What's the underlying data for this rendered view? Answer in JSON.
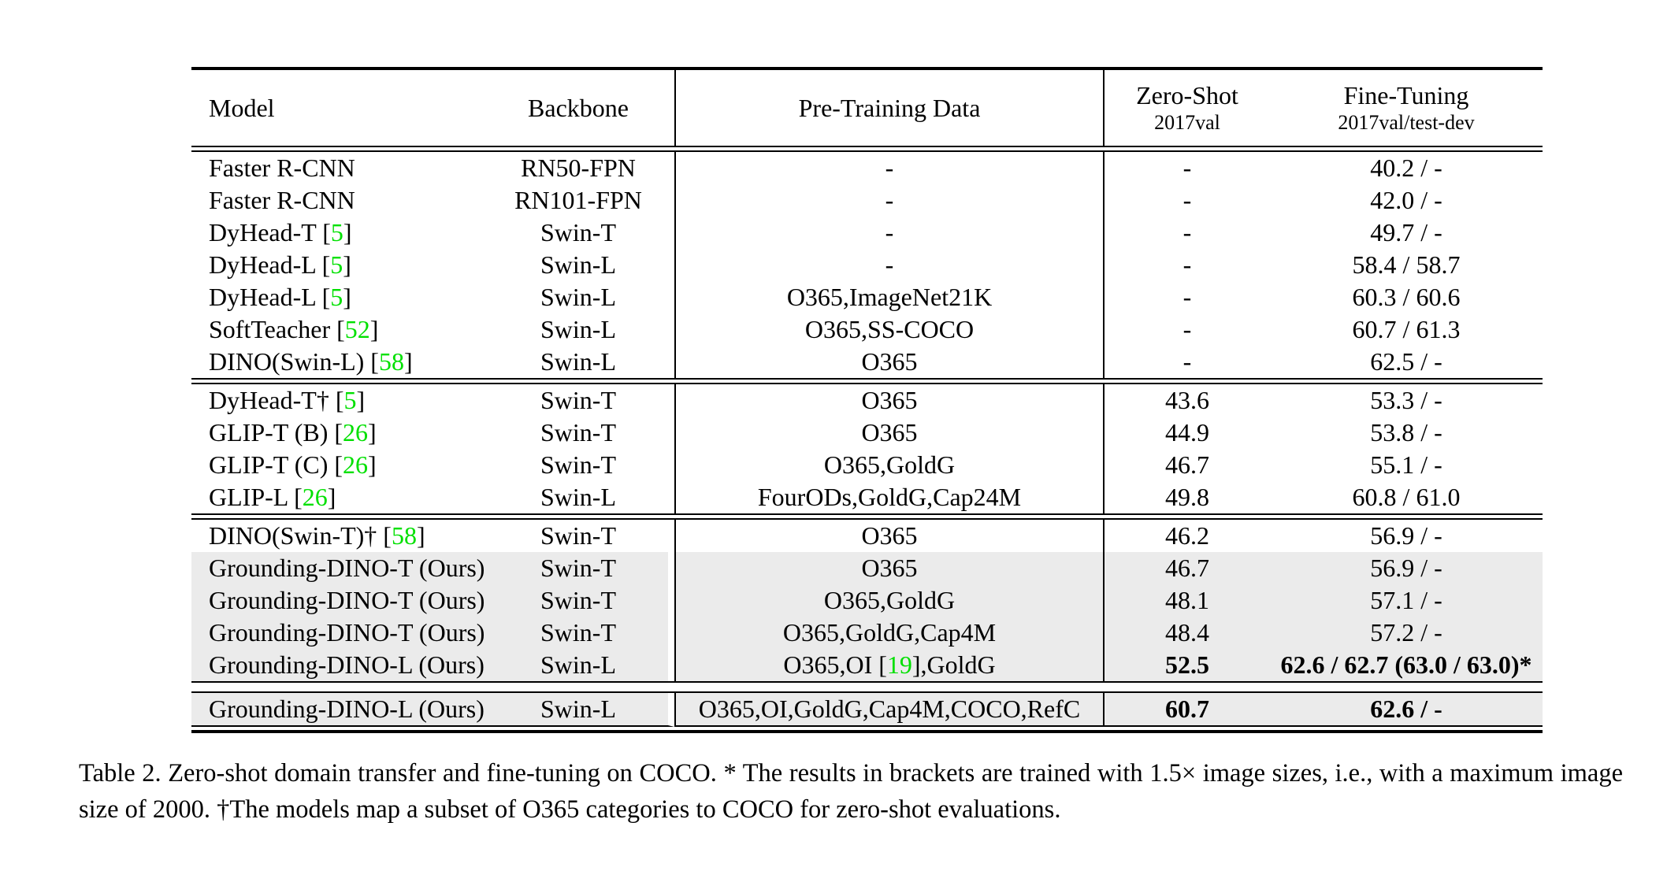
{
  "colors": {
    "citation_green": "#00e000",
    "row_highlight": "#ebebeb"
  },
  "table": {
    "header": {
      "model": "Model",
      "backbone": "Backbone",
      "pretrain": "Pre-Training Data",
      "zero_shot": "Zero-Shot",
      "zero_shot_sub": "2017val",
      "fine_tuning": "Fine-Tuning",
      "fine_tuning_sub": "2017val/test-dev"
    },
    "rows": [
      {
        "model": [
          {
            "t": "Faster R-CNN"
          }
        ],
        "backbone": "RN50-FPN",
        "pretrain": [
          {
            "t": "-"
          }
        ],
        "zs": "-",
        "ft": "40.2 / -"
      },
      {
        "model": [
          {
            "t": "Faster R-CNN"
          }
        ],
        "backbone": "RN101-FPN",
        "pretrain": [
          {
            "t": "-"
          }
        ],
        "zs": "-",
        "ft": "42.0 / -"
      },
      {
        "model": [
          {
            "t": "DyHead-T ["
          },
          {
            "t": "5",
            "cite": true
          },
          {
            "t": "]"
          }
        ],
        "backbone": "Swin-T",
        "pretrain": [
          {
            "t": "-"
          }
        ],
        "zs": "-",
        "ft": "49.7 / -"
      },
      {
        "model": [
          {
            "t": "DyHead-L ["
          },
          {
            "t": "5",
            "cite": true
          },
          {
            "t": "]"
          }
        ],
        "backbone": "Swin-L",
        "pretrain": [
          {
            "t": "-"
          }
        ],
        "zs": "-",
        "ft": "58.4 / 58.7"
      },
      {
        "model": [
          {
            "t": "DyHead-L ["
          },
          {
            "t": "5",
            "cite": true
          },
          {
            "t": "]"
          }
        ],
        "backbone": "Swin-L",
        "pretrain": [
          {
            "t": "O365,ImageNet21K"
          }
        ],
        "zs": "-",
        "ft": "60.3 / 60.6"
      },
      {
        "model": [
          {
            "t": "SoftTeacher ["
          },
          {
            "t": "52",
            "cite": true
          },
          {
            "t": "]"
          }
        ],
        "backbone": "Swin-L",
        "pretrain": [
          {
            "t": "O365,SS-COCO"
          }
        ],
        "zs": "-",
        "ft": "60.7 / 61.3"
      },
      {
        "model": [
          {
            "t": "DINO(Swin-L) ["
          },
          {
            "t": "58",
            "cite": true
          },
          {
            "t": "]"
          }
        ],
        "backbone": "Swin-L",
        "pretrain": [
          {
            "t": "O365"
          }
        ],
        "zs": "-",
        "ft": "62.5 / -"
      },
      {
        "model": [
          {
            "t": "DyHead-T† ["
          },
          {
            "t": "5",
            "cite": true
          },
          {
            "t": "]"
          }
        ],
        "backbone": "Swin-T",
        "pretrain": [
          {
            "t": "O365"
          }
        ],
        "zs": "43.6",
        "ft": "53.3 / -"
      },
      {
        "model": [
          {
            "t": "GLIP-T (B) ["
          },
          {
            "t": "26",
            "cite": true
          },
          {
            "t": "]"
          }
        ],
        "backbone": "Swin-T",
        "pretrain": [
          {
            "t": "O365"
          }
        ],
        "zs": "44.9",
        "ft": "53.8 / -"
      },
      {
        "model": [
          {
            "t": "GLIP-T (C) ["
          },
          {
            "t": "26",
            "cite": true
          },
          {
            "t": "]"
          }
        ],
        "backbone": "Swin-T",
        "pretrain": [
          {
            "t": "O365,GoldG"
          }
        ],
        "zs": "46.7",
        "ft": "55.1 / -"
      },
      {
        "model": [
          {
            "t": "GLIP-L ["
          },
          {
            "t": "26",
            "cite": true
          },
          {
            "t": "]"
          }
        ],
        "backbone": "Swin-L",
        "pretrain": [
          {
            "t": "FourODs,GoldG,Cap24M"
          }
        ],
        "zs": "49.8",
        "ft": "60.8 / 61.0"
      },
      {
        "model": [
          {
            "t": "DINO(Swin-T)† ["
          },
          {
            "t": "58",
            "cite": true
          },
          {
            "t": "]"
          }
        ],
        "backbone": "Swin-T",
        "pretrain": [
          {
            "t": "O365"
          }
        ],
        "zs": "46.2",
        "ft": "56.9 / -"
      },
      {
        "model": [
          {
            "t": "Grounding-DINO-T (Ours)"
          }
        ],
        "backbone": "Swin-T",
        "pretrain": [
          {
            "t": "O365"
          }
        ],
        "zs": "46.7",
        "ft": "56.9 / -"
      },
      {
        "model": [
          {
            "t": "Grounding-DINO-T (Ours)"
          }
        ],
        "backbone": "Swin-T",
        "pretrain": [
          {
            "t": "O365,GoldG"
          }
        ],
        "zs": "48.1",
        "ft": "57.1 / -"
      },
      {
        "model": [
          {
            "t": "Grounding-DINO-T (Ours)"
          }
        ],
        "backbone": "Swin-T",
        "pretrain": [
          {
            "t": "O365,GoldG,Cap4M"
          }
        ],
        "zs": "48.4",
        "ft": "57.2 / -"
      },
      {
        "model": [
          {
            "t": "Grounding-DINO-L (Ours)"
          }
        ],
        "backbone": "Swin-L",
        "pretrain": [
          {
            "t": "O365,OI ["
          },
          {
            "t": "19",
            "cite": true
          },
          {
            "t": "],GoldG"
          }
        ],
        "zs": "52.5",
        "ft": "62.6 / 62.7 (63.0 / 63.0)*"
      },
      {
        "model": [
          {
            "t": "Grounding-DINO-L (Ours)"
          }
        ],
        "backbone": "Swin-L",
        "pretrain": [
          {
            "t": "O365,OI,GoldG,Cap4M,COCO,RefC"
          }
        ],
        "zs": "60.7",
        "ft": "62.6 / -"
      }
    ]
  },
  "caption": "Table 2. Zero-shot domain transfer and fine-tuning on COCO. * The results in brackets are trained with 1.5× image sizes, i.e., with a maximum image size of 2000. †The models map a subset of O365 categories to COCO for zero-shot evaluations."
}
